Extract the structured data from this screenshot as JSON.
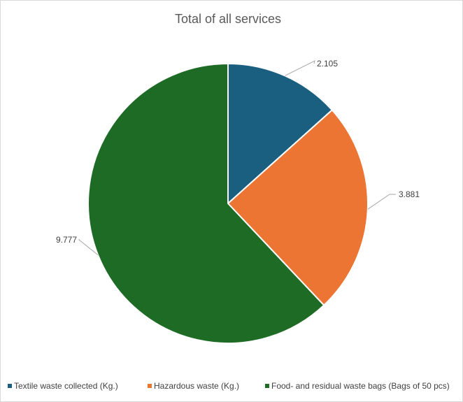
{
  "chart_data": {
    "type": "pie",
    "title": "Total of all services",
    "categories": [
      "Textile waste collected (Kg.)",
      "Hazardous waste (Kg.)",
      "Food- and residual waste bags (Bags of 50 pcs)"
    ],
    "values": [
      2.105,
      3.881,
      9.777
    ],
    "data_labels": [
      "2.105",
      "3.881",
      "9.777"
    ],
    "colors": [
      "#1a5e80",
      "#ec7534",
      "#1e6b26"
    ],
    "legend_position": "bottom",
    "start_angle_deg": 0,
    "direction": "clockwise"
  }
}
